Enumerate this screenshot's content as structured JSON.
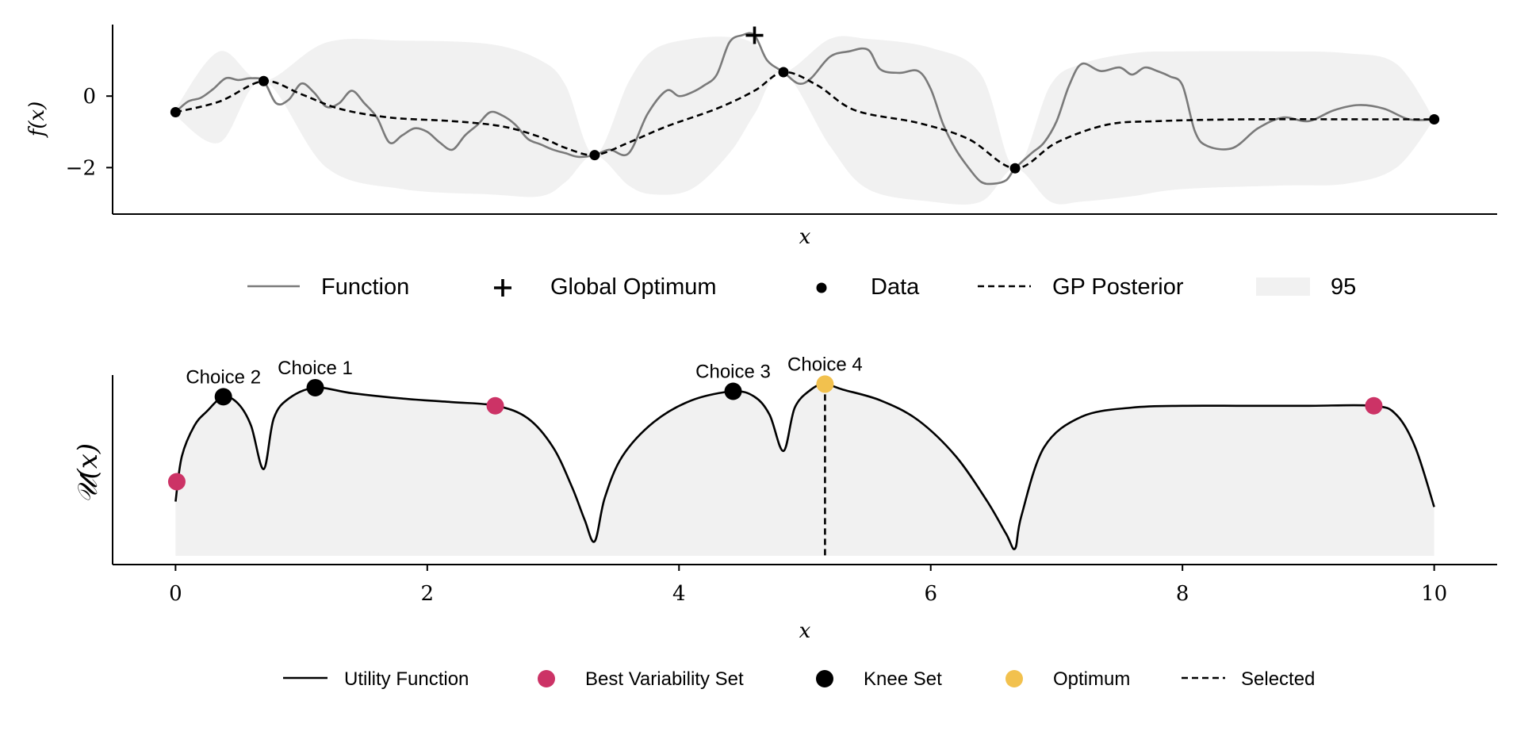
{
  "chart_data": [
    {
      "type": "line",
      "panel": "top",
      "xlabel": "x",
      "ylabel": "f(x)",
      "xlim": [
        -0.5,
        10.5
      ],
      "ylim": [
        -3.3,
        2.0
      ],
      "yticks": [
        {
          "value": 0,
          "label": "0"
        },
        {
          "value": -2,
          "label": "−2"
        }
      ],
      "data_points": {
        "x": [
          0.0,
          0.7,
          3.33,
          4.83,
          6.67,
          10.0
        ],
        "y": [
          -0.45,
          0.42,
          -1.65,
          0.67,
          -2.02,
          -0.65
        ]
      },
      "global_optimum": {
        "x": 4.6,
        "y": 1.7
      },
      "ci_band": {
        "x": [
          0.0,
          0.35,
          0.7,
          1.2,
          1.8,
          2.5,
          2.9,
          3.1,
          3.33,
          3.6,
          3.8,
          4.1,
          4.4,
          4.6,
          4.83,
          5.2,
          5.5,
          6.0,
          6.4,
          6.67,
          6.95,
          7.2,
          7.6,
          8.0,
          8.8,
          9.3,
          9.7,
          10.0
        ],
        "lower": [
          -0.55,
          -1.3,
          0.42,
          -2.0,
          -2.6,
          -2.75,
          -2.8,
          -2.4,
          -1.65,
          -2.5,
          -2.75,
          -2.6,
          -1.6,
          -0.5,
          0.67,
          -1.4,
          -2.6,
          -2.95,
          -2.95,
          -2.02,
          -2.95,
          -2.95,
          -2.8,
          -2.6,
          -2.5,
          -2.45,
          -2.0,
          -0.65
        ],
        "upper": [
          -0.35,
          1.25,
          0.42,
          1.5,
          1.55,
          1.45,
          1.0,
          0.3,
          -1.65,
          0.4,
          1.3,
          1.6,
          1.65,
          1.45,
          0.67,
          1.6,
          1.6,
          1.35,
          0.6,
          -2.02,
          0.3,
          0.9,
          1.2,
          1.25,
          1.25,
          1.2,
          0.9,
          -0.65
        ]
      },
      "gp_posterior": {
        "x": [
          0.0,
          0.35,
          0.7,
          1.0,
          1.3,
          1.7,
          2.2,
          2.6,
          2.9,
          3.1,
          3.33,
          3.6,
          3.9,
          4.3,
          4.6,
          4.83,
          5.1,
          5.4,
          5.9,
          6.3,
          6.67,
          7.0,
          7.4,
          7.8,
          8.5,
          9.5,
          10.0
        ],
        "y": [
          -0.45,
          -0.15,
          0.42,
          0.05,
          -0.35,
          -0.6,
          -0.7,
          -0.85,
          -1.15,
          -1.45,
          -1.65,
          -1.3,
          -0.85,
          -0.35,
          0.15,
          0.67,
          0.3,
          -0.4,
          -0.75,
          -1.2,
          -2.02,
          -1.3,
          -0.8,
          -0.7,
          -0.65,
          -0.65,
          -0.65
        ]
      },
      "function": {
        "x": [
          0.0,
          0.1,
          0.2,
          0.3,
          0.4,
          0.5,
          0.6,
          0.7,
          0.8,
          0.9,
          1.0,
          1.1,
          1.2,
          1.3,
          1.4,
          1.5,
          1.6,
          1.7,
          1.8,
          1.9,
          2.0,
          2.1,
          2.2,
          2.3,
          2.4,
          2.5,
          2.6,
          2.7,
          2.8,
          2.9,
          3.0,
          3.1,
          3.2,
          3.33,
          3.45,
          3.6,
          3.75,
          3.9,
          4.0,
          4.1,
          4.2,
          4.3,
          4.4,
          4.5,
          4.6,
          4.7,
          4.83,
          4.95,
          5.05,
          5.2,
          5.35,
          5.5,
          5.6,
          5.75,
          5.9,
          6.0,
          6.1,
          6.2,
          6.3,
          6.4,
          6.5,
          6.6,
          6.67,
          6.8,
          6.9,
          7.0,
          7.1,
          7.2,
          7.35,
          7.5,
          7.6,
          7.7,
          7.8,
          7.9,
          8.0,
          8.1,
          8.2,
          8.4,
          8.6,
          8.8,
          9.0,
          9.2,
          9.4,
          9.6,
          9.8,
          10.0
        ],
        "y": [
          -0.45,
          -0.15,
          -0.05,
          0.2,
          0.5,
          0.45,
          0.5,
          0.42,
          -0.2,
          -0.1,
          0.35,
          0.1,
          -0.3,
          -0.2,
          0.15,
          -0.2,
          -0.6,
          -1.3,
          -1.1,
          -0.9,
          -1.0,
          -1.3,
          -1.5,
          -1.1,
          -0.8,
          -0.45,
          -0.55,
          -0.8,
          -1.2,
          -1.35,
          -1.5,
          -1.6,
          -1.7,
          -1.65,
          -1.5,
          -1.6,
          -0.5,
          0.15,
          0.0,
          0.1,
          0.3,
          0.6,
          1.5,
          1.7,
          1.7,
          1.0,
          0.67,
          0.35,
          0.5,
          1.1,
          1.25,
          1.3,
          0.75,
          0.65,
          0.7,
          0.2,
          -0.8,
          -1.5,
          -2.0,
          -2.4,
          -2.45,
          -2.35,
          -2.02,
          -1.6,
          -1.3,
          -0.7,
          0.3,
          0.9,
          0.7,
          0.8,
          0.6,
          0.8,
          0.7,
          0.55,
          0.3,
          -1.0,
          -1.4,
          -1.45,
          -0.9,
          -0.6,
          -0.7,
          -0.4,
          -0.25,
          -0.35,
          -0.65,
          -0.65
        ]
      },
      "legend": {
        "placement": "below",
        "entries": [
          "Function",
          "Global Optimum",
          "Data",
          "GP Posterior",
          "95"
        ]
      }
    },
    {
      "type": "line",
      "panel": "bottom",
      "xlabel": "x",
      "ylabel": "𝒰(x)",
      "xlim": [
        -0.5,
        10.5
      ],
      "ylim": [
        0.0,
        1.0
      ],
      "xticks": [
        {
          "value": 0,
          "label": "0"
        },
        {
          "value": 2,
          "label": "2"
        },
        {
          "value": 4,
          "label": "4"
        },
        {
          "value": 6,
          "label": "6"
        },
        {
          "value": 8,
          "label": "8"
        },
        {
          "value": 10,
          "label": "10"
        }
      ],
      "utility": {
        "x": [
          0.0,
          0.05,
          0.15,
          0.25,
          0.38,
          0.5,
          0.6,
          0.7,
          0.78,
          0.9,
          1.11,
          1.4,
          1.8,
          2.2,
          2.55,
          2.8,
          3.0,
          3.15,
          3.25,
          3.33,
          3.41,
          3.55,
          3.8,
          4.1,
          4.43,
          4.6,
          4.72,
          4.83,
          4.92,
          5.05,
          5.16,
          5.3,
          5.6,
          5.9,
          6.2,
          6.45,
          6.6,
          6.67,
          6.72,
          6.9,
          7.2,
          7.6,
          8.0,
          8.5,
          9.0,
          9.52,
          9.7,
          9.85,
          10.0
        ],
        "y": [
          0.3,
          0.55,
          0.72,
          0.8,
          0.88,
          0.84,
          0.72,
          0.48,
          0.76,
          0.87,
          0.93,
          0.9,
          0.87,
          0.85,
          0.83,
          0.76,
          0.6,
          0.38,
          0.2,
          0.08,
          0.32,
          0.55,
          0.74,
          0.86,
          0.91,
          0.88,
          0.78,
          0.58,
          0.82,
          0.92,
          0.95,
          0.92,
          0.86,
          0.75,
          0.55,
          0.3,
          0.12,
          0.04,
          0.22,
          0.6,
          0.77,
          0.82,
          0.83,
          0.83,
          0.83,
          0.83,
          0.78,
          0.6,
          0.27
        ]
      },
      "best_variability_set": {
        "x": [
          0.01,
          2.54,
          9.52
        ],
        "y": [
          0.41,
          0.83,
          0.83
        ]
      },
      "knee_set": {
        "x": [
          0.38,
          1.11,
          4.43
        ],
        "y": [
          0.88,
          0.93,
          0.91
        ]
      },
      "optimum": {
        "x": 5.16,
        "y": 0.95
      },
      "selected_x": 5.16,
      "annotations": [
        {
          "x": 0.38,
          "y": 0.88,
          "text": "Choice 2"
        },
        {
          "x": 1.11,
          "y": 0.93,
          "text": "Choice 1"
        },
        {
          "x": 4.43,
          "y": 0.91,
          "text": "Choice 3"
        },
        {
          "x": 5.16,
          "y": 0.95,
          "text": "Choice 4"
        }
      ],
      "legend": {
        "placement": "below",
        "entries": [
          "Utility Function",
          "Best Variability Set",
          "Knee Set",
          "Optimum",
          "Selected"
        ]
      }
    }
  ],
  "colors": {
    "function": "#7a7a7a",
    "band": "#f1f1f1",
    "best_variability": "#cc3366",
    "knee": "#000000",
    "optimum": "#f2c14e",
    "axis": "#000000"
  }
}
